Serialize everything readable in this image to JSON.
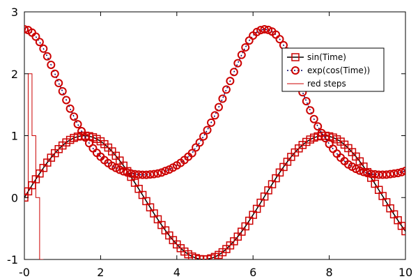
{
  "chart_data": {
    "type": "line",
    "title": "",
    "xlabel": "",
    "ylabel": "",
    "xlim": [
      0,
      10
    ],
    "ylim": [
      -1,
      3
    ],
    "x_ticks": [
      0,
      2,
      4,
      6,
      8,
      10
    ],
    "x_tick_labels": [
      "-0",
      "2",
      "4",
      "6",
      "8",
      "10"
    ],
    "y_ticks": [
      -1,
      0,
      1,
      2,
      3
    ],
    "y_tick_labels": [
      "-1",
      "0",
      "1",
      "2",
      "3"
    ],
    "grid": false,
    "legend_position": "upper-right",
    "series": [
      {
        "name": "sin(Time)",
        "style": "line-with-square-markers",
        "line_color": "#000000",
        "marker_color": "#cc0000",
        "x_step": 0.1,
        "x": [
          0.0,
          0.1,
          0.2,
          0.3,
          0.4,
          0.5,
          0.6,
          0.7,
          0.8,
          0.9,
          1.0,
          1.1,
          1.2,
          1.3,
          1.4,
          1.5,
          1.6,
          1.7,
          1.8,
          1.9,
          2.0,
          2.1,
          2.2,
          2.3,
          2.4,
          2.5,
          2.6,
          2.7,
          2.8,
          2.9,
          3.0,
          3.1,
          3.2,
          3.3,
          3.4,
          3.5,
          3.6,
          3.7,
          3.8,
          3.9,
          4.0,
          4.1,
          4.2,
          4.3,
          4.4,
          4.5,
          4.6,
          4.7,
          4.8,
          4.9,
          5.0,
          5.1,
          5.2,
          5.3,
          5.4,
          5.5,
          5.6,
          5.7,
          5.8,
          5.9,
          6.0,
          6.1,
          6.2,
          6.3,
          6.4,
          6.5,
          6.6,
          6.7,
          6.8,
          6.9,
          7.0,
          7.1,
          7.2,
          7.3,
          7.4,
          7.5,
          7.6,
          7.7,
          7.8,
          7.9,
          8.0,
          8.1,
          8.2,
          8.3,
          8.4,
          8.5,
          8.6,
          8.7,
          8.8,
          8.9,
          9.0,
          9.1,
          9.2,
          9.3,
          9.4,
          9.5,
          9.6,
          9.7,
          9.8,
          9.9,
          10.0
        ],
        "y": [
          0.0,
          0.1,
          0.199,
          0.296,
          0.389,
          0.479,
          0.565,
          0.644,
          0.717,
          0.783,
          0.841,
          0.891,
          0.932,
          0.964,
          0.985,
          0.997,
          1.0,
          0.992,
          0.974,
          0.946,
          0.909,
          0.863,
          0.808,
          0.746,
          0.675,
          0.598,
          0.516,
          0.427,
          0.335,
          0.239,
          0.141,
          0.042,
          -0.058,
          -0.158,
          -0.256,
          -0.351,
          -0.443,
          -0.53,
          -0.612,
          -0.688,
          -0.757,
          -0.818,
          -0.872,
          -0.916,
          -0.952,
          -0.978,
          -0.994,
          -1.0,
          -0.996,
          -0.982,
          -0.959,
          -0.926,
          -0.883,
          -0.832,
          -0.773,
          -0.706,
          -0.631,
          -0.551,
          -0.465,
          -0.374,
          -0.279,
          -0.182,
          -0.083,
          0.017,
          0.117,
          0.215,
          0.312,
          0.405,
          0.494,
          0.578,
          0.657,
          0.729,
          0.794,
          0.85,
          0.899,
          0.938,
          0.968,
          0.988,
          0.999,
          0.999,
          0.989,
          0.97,
          0.941,
          0.904,
          0.855,
          0.798,
          0.734,
          0.663,
          0.585,
          0.501,
          0.412,
          0.319,
          0.223,
          0.124,
          0.025,
          -0.075,
          -0.174,
          -0.271,
          -0.366,
          -0.457,
          -0.544
        ]
      },
      {
        "name": "exp(cos(Time))",
        "style": "dotted-line-with-circle-markers",
        "line_color": "#000066",
        "marker_color": "#cc0000",
        "x_step": 0.1,
        "x": [
          0.0,
          0.1,
          0.2,
          0.3,
          0.4,
          0.5,
          0.6,
          0.7,
          0.8,
          0.9,
          1.0,
          1.1,
          1.2,
          1.3,
          1.4,
          1.5,
          1.6,
          1.7,
          1.8,
          1.9,
          2.0,
          2.1,
          2.2,
          2.3,
          2.4,
          2.5,
          2.6,
          2.7,
          2.8,
          2.9,
          3.0,
          3.1,
          3.2,
          3.3,
          3.4,
          3.5,
          3.6,
          3.7,
          3.8,
          3.9,
          4.0,
          4.1,
          4.2,
          4.3,
          4.4,
          4.5,
          4.6,
          4.7,
          4.8,
          4.9,
          5.0,
          5.1,
          5.2,
          5.3,
          5.4,
          5.5,
          5.6,
          5.7,
          5.8,
          5.9,
          6.0,
          6.1,
          6.2,
          6.3,
          6.4,
          6.5,
          6.6,
          6.7,
          6.8,
          6.9,
          7.0,
          7.1,
          7.2,
          7.3,
          7.4,
          7.5,
          7.6,
          7.7,
          7.8,
          7.9,
          8.0,
          8.1,
          8.2,
          8.3,
          8.4,
          8.5,
          8.6,
          8.7,
          8.8,
          8.9,
          9.0,
          9.1,
          9.2,
          9.3,
          9.4,
          9.5,
          9.6,
          9.7,
          9.8,
          9.9,
          10.0
        ],
        "y": [
          2.718,
          2.705,
          2.665,
          2.6,
          2.513,
          2.405,
          2.281,
          2.144,
          2.0,
          1.85,
          1.717,
          1.575,
          1.437,
          1.307,
          1.185,
          1.073,
          0.971,
          0.879,
          0.796,
          0.722,
          0.66,
          0.605,
          0.556,
          0.513,
          0.479,
          0.449,
          0.424,
          0.404,
          0.389,
          0.377,
          0.372,
          0.368,
          0.368,
          0.373,
          0.379,
          0.389,
          0.404,
          0.429,
          0.452,
          0.484,
          0.52,
          0.56,
          0.607,
          0.66,
          0.717,
          0.81,
          0.89,
          0.988,
          1.09,
          1.21,
          1.328,
          1.461,
          1.597,
          1.745,
          1.883,
          2.028,
          2.17,
          2.305,
          2.426,
          2.536,
          2.617,
          2.674,
          2.705,
          2.718,
          2.709,
          2.682,
          2.633,
          2.559,
          2.462,
          2.358,
          2.125,
          1.996,
          1.85,
          1.701,
          1.556,
          1.408,
          1.268,
          1.15,
          1.042,
          0.959,
          0.865,
          0.787,
          0.71,
          0.645,
          0.589,
          0.535,
          0.499,
          0.464,
          0.435,
          0.414,
          0.396,
          0.382,
          0.376,
          0.369,
          0.369,
          0.37,
          0.379,
          0.388,
          0.396,
          0.411,
          0.431
        ]
      },
      {
        "name": "red steps",
        "style": "step",
        "line_color": "#cc0000",
        "x": [
          0.0,
          0.1,
          0.2,
          0.3,
          0.4
        ],
        "y": [
          0,
          2,
          1,
          0,
          -1
        ]
      }
    ]
  }
}
